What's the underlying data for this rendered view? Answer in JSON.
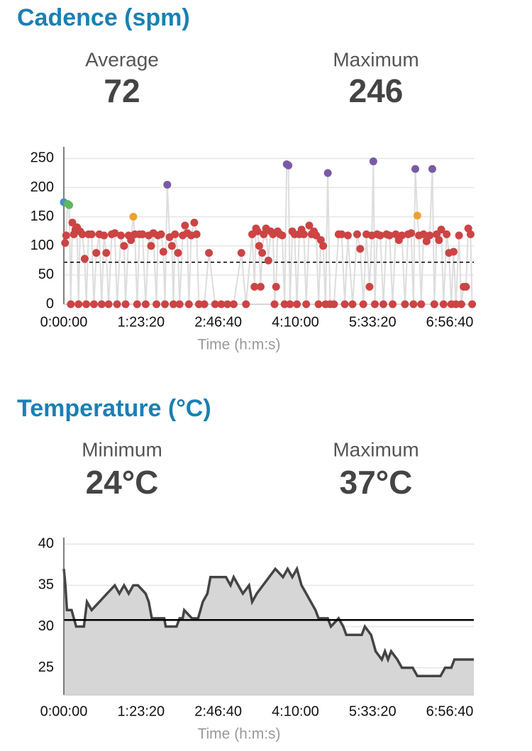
{
  "chart_data": [
    {
      "type": "scatter",
      "title": "Cadence (spm)",
      "stats": [
        {
          "label": "Average",
          "value": 72
        },
        {
          "label": "Maximum",
          "value": 246
        }
      ],
      "xlabel": "Time (h:m:s)",
      "x": [
        0,
        80,
        150,
        250,
        350,
        450,
        550,
        650,
        750,
        850,
        950,
        1050,
        1200,
        1350,
        1450,
        1600,
        1800,
        1950,
        2100,
        2300,
        2450,
        2600,
        2750,
        2900,
        3100,
        3300,
        3450,
        3700,
        3900,
        4000,
        4200,
        4350,
        4500,
        4600,
        4750,
        4900,
        5100,
        5300,
        5500,
        5650,
        5800,
        6000,
        6100,
        6300,
        6450,
        6550,
        6700,
        6850,
        7000,
        7100,
        7200,
        7400,
        7500,
        7700,
        7850,
        8000,
        8100,
        8250,
        8450,
        8600,
        8750,
        9100,
        9400,
        9800,
        10200,
        10600,
        11000,
        11500,
        11800,
        12200,
        12350,
        12450,
        12550,
        12650,
        12750,
        12850,
        12950,
        13100,
        13250,
        13400,
        13550,
        13650,
        13750,
        13850,
        14000,
        14150,
        14300,
        14440,
        14550,
        14650,
        14800,
        14950,
        15100,
        15250,
        15400,
        15550,
        15700,
        15900,
        16050,
        16200,
        16350,
        16500,
        16650,
        16800,
        16950,
        17100,
        17250,
        17500,
        17800,
        18000,
        18200,
        18400,
        18700,
        19000,
        19200,
        19400,
        19600,
        19800,
        19950,
        20050,
        20150,
        20300,
        20500,
        20700,
        20900,
        21100,
        21300,
        21500,
        21700,
        21900,
        22100,
        22300,
        22500,
        22650,
        22770,
        22900,
        23000,
        23150,
        23300,
        23500,
        23700,
        23870,
        24000,
        24150,
        24300,
        24450,
        24600,
        24800,
        24950,
        25100,
        25250,
        25400,
        25600,
        25750,
        25900,
        26050,
        26200,
        26350,
        26450
      ],
      "values": [
        175,
        105,
        118,
        172,
        170,
        0,
        140,
        120,
        128,
        132,
        0,
        125,
        120,
        78,
        0,
        120,
        120,
        0,
        88,
        120,
        0,
        118,
        88,
        0,
        120,
        122,
        0,
        118,
        100,
        0,
        118,
        110,
        150,
        120,
        0,
        120,
        120,
        0,
        118,
        100,
        122,
        0,
        118,
        120,
        90,
        0,
        205,
        115,
        100,
        0,
        120,
        88,
        0,
        118,
        135,
        122,
        0,
        118,
        140,
        120,
        0,
        0,
        88,
        0,
        0,
        0,
        0,
        88,
        0,
        120,
        30,
        130,
        125,
        100,
        30,
        88,
        120,
        130,
        75,
        125,
        120,
        0,
        30,
        125,
        120,
        118,
        0,
        240,
        238,
        0,
        125,
        120,
        0,
        120,
        128,
        120,
        0,
        135,
        120,
        125,
        118,
        0,
        110,
        100,
        0,
        225,
        0,
        0,
        120,
        120,
        0,
        118,
        0,
        120,
        95,
        0,
        120,
        30,
        118,
        245,
        0,
        120,
        118,
        0,
        120,
        118,
        0,
        120,
        110,
        118,
        0,
        120,
        122,
        0,
        232,
        152,
        118,
        0,
        120,
        108,
        118,
        232,
        0,
        120,
        110,
        128,
        0,
        120,
        88,
        0,
        90,
        0,
        118,
        0,
        30,
        30,
        130,
        120,
        0
      ],
      "colors": [
        "#4a8fc7",
        "#cc4444",
        "#cc4444",
        "#5cb85c",
        "#5cb85c",
        "#cc4444",
        "#cc4444",
        "#cc4444",
        "#cc4444",
        "#cc4444",
        "#cc4444",
        "#cc4444",
        "#cc4444",
        "#cc4444",
        "#cc4444",
        "#cc4444",
        "#cc4444",
        "#cc4444",
        "#cc4444",
        "#cc4444",
        "#cc4444",
        "#cc4444",
        "#cc4444",
        "#cc4444",
        "#cc4444",
        "#cc4444",
        "#cc4444",
        "#cc4444",
        "#cc4444",
        "#cc4444",
        "#cc4444",
        "#cc4444",
        "#f0a030",
        "#cc4444",
        "#cc4444",
        "#cc4444",
        "#cc4444",
        "#cc4444",
        "#cc4444",
        "#cc4444",
        "#cc4444",
        "#cc4444",
        "#cc4444",
        "#cc4444",
        "#cc4444",
        "#cc4444",
        "#7a5aa6",
        "#cc4444",
        "#cc4444",
        "#cc4444",
        "#cc4444",
        "#cc4444",
        "#cc4444",
        "#cc4444",
        "#cc4444",
        "#cc4444",
        "#cc4444",
        "#cc4444",
        "#cc4444",
        "#cc4444",
        "#cc4444",
        "#cc4444",
        "#cc4444",
        "#cc4444",
        "#cc4444",
        "#cc4444",
        "#cc4444",
        "#cc4444",
        "#cc4444",
        "#cc4444",
        "#cc4444",
        "#cc4444",
        "#cc4444",
        "#cc4444",
        "#cc4444",
        "#cc4444",
        "#cc4444",
        "#cc4444",
        "#cc4444",
        "#cc4444",
        "#cc4444",
        "#cc4444",
        "#cc4444",
        "#cc4444",
        "#cc4444",
        "#cc4444",
        "#cc4444",
        "#7a5aa6",
        "#7a5aa6",
        "#cc4444",
        "#cc4444",
        "#cc4444",
        "#cc4444",
        "#cc4444",
        "#cc4444",
        "#cc4444",
        "#cc4444",
        "#cc4444",
        "#cc4444",
        "#cc4444",
        "#cc4444",
        "#cc4444",
        "#cc4444",
        "#cc4444",
        "#cc4444",
        "#7a5aa6",
        "#cc4444",
        "#cc4444",
        "#cc4444",
        "#cc4444",
        "#cc4444",
        "#cc4444",
        "#cc4444",
        "#cc4444",
        "#cc4444",
        "#cc4444",
        "#cc4444",
        "#cc4444",
        "#cc4444",
        "#7a5aa6",
        "#cc4444",
        "#cc4444",
        "#cc4444",
        "#cc4444",
        "#cc4444",
        "#cc4444",
        "#cc4444",
        "#cc4444",
        "#cc4444",
        "#cc4444",
        "#cc4444",
        "#cc4444",
        "#cc4444",
        "#cc4444",
        "#7a5aa6",
        "#f0a030",
        "#cc4444",
        "#cc4444",
        "#cc4444",
        "#cc4444",
        "#cc4444",
        "#7a5aa6",
        "#cc4444",
        "#cc4444",
        "#cc4444",
        "#cc4444",
        "#cc4444",
        "#cc4444",
        "#cc4444",
        "#cc4444",
        "#cc4444",
        "#cc4444",
        "#cc4444",
        "#cc4444",
        "#cc4444",
        "#cc4444",
        "#cc4444",
        "#cc4444",
        "#cc4444"
      ],
      "line_color": "#dddddd",
      "reference_line": 72,
      "reference_style": "dashed",
      "xlim": [
        0,
        26560
      ],
      "xticks": [
        {
          "value": 0,
          "label": "0:00:00"
        },
        {
          "value": 5000,
          "label": "1:23:20"
        },
        {
          "value": 10000,
          "label": "2:46:40"
        },
        {
          "value": 15000,
          "label": "4:10:00"
        },
        {
          "value": 20000,
          "label": "5:33:20"
        },
        {
          "value": 25000,
          "label": "6:56:40"
        }
      ],
      "ylim": [
        0,
        270
      ],
      "yticks": [
        0,
        50,
        100,
        150,
        200,
        250
      ],
      "grid": true
    },
    {
      "type": "area",
      "title": "Temperature (°C)",
      "stats": [
        {
          "label": "Minimum",
          "value": 24,
          "value_label": "24°C"
        },
        {
          "label": "Maximum",
          "value": 37,
          "value_label": "37°C"
        }
      ],
      "xlabel": "Time (h:m:s)",
      "x": [
        0,
        100,
        200,
        500,
        800,
        1300,
        1500,
        1800,
        2300,
        2800,
        3300,
        3600,
        3900,
        4200,
        4500,
        4800,
        5300,
        5500,
        5700,
        6500,
        6600,
        7300,
        7500,
        7700,
        7800,
        8300,
        8700,
        9000,
        9300,
        9500,
        10500,
        10800,
        11000,
        11300,
        11600,
        12000,
        12200,
        12500,
        12900,
        13300,
        13700,
        14200,
        14500,
        14800,
        15100,
        15400,
        15700,
        16000,
        16300,
        16500,
        17100,
        17300,
        17800,
        18100,
        18300,
        19300,
        19500,
        19900,
        20200,
        20600,
        20800,
        21000,
        21200,
        21600,
        21900,
        22600,
        22900,
        24400,
        24700,
        25100,
        25300,
        26560
      ],
      "values": [
        37,
        35,
        32,
        32,
        30,
        30,
        33,
        32,
        33,
        34,
        35,
        34,
        35,
        34,
        35,
        35,
        34,
        33,
        31,
        31,
        30,
        30,
        31,
        31,
        32,
        31,
        31,
        33,
        34,
        36,
        36,
        35,
        36,
        35,
        34,
        35,
        33,
        34,
        35,
        36,
        37,
        36,
        37,
        36,
        37,
        35,
        34,
        33,
        32,
        31,
        31,
        30,
        31,
        30,
        29,
        29,
        30,
        29,
        27,
        26,
        27,
        26,
        27,
        26,
        25,
        25,
        24,
        24,
        25,
        25,
        26,
        26
      ],
      "color": "#444444",
      "fill": "#d6d6d6",
      "reference_line": 30.8,
      "reference_style": "solid",
      "xlim": [
        0,
        26560
      ],
      "xticks": [
        {
          "value": 0,
          "label": "0:00:00"
        },
        {
          "value": 5000,
          "label": "1:23:20"
        },
        {
          "value": 10000,
          "label": "2:46:40"
        },
        {
          "value": 15000,
          "label": "4:10:00"
        },
        {
          "value": 20000,
          "label": "5:33:20"
        },
        {
          "value": 25000,
          "label": "6:56:40"
        }
      ],
      "ylim": [
        21.7,
        40.8
      ],
      "yticks": [
        25,
        30,
        35,
        40
      ],
      "grid": true
    }
  ]
}
